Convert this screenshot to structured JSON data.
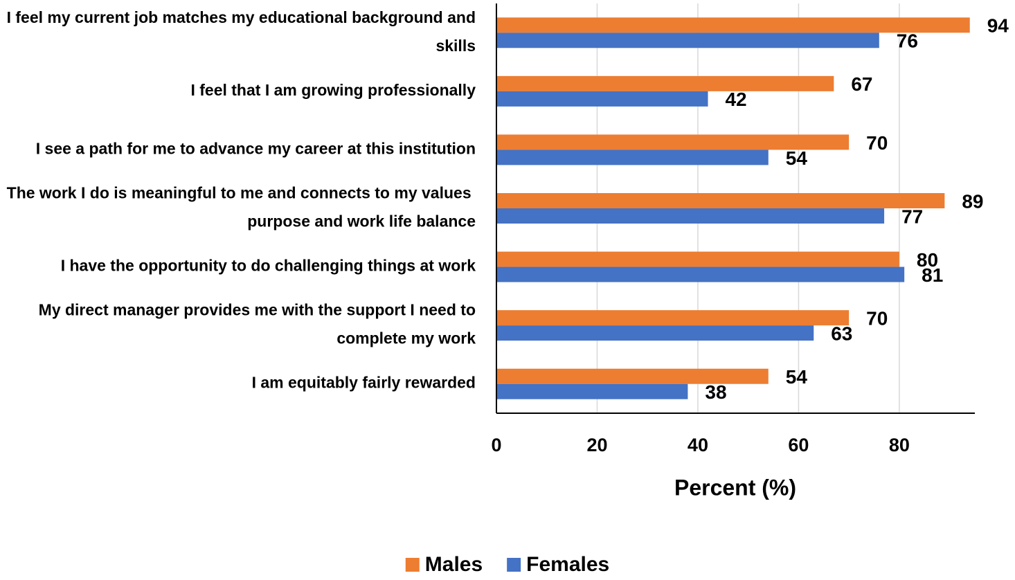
{
  "chart_data": {
    "type": "bar",
    "orientation": "horizontal",
    "categories": [
      "I feel my current job matches my educational background and skills",
      "I feel that I am growing professionally",
      "I see a path for me to advance my career at this institution",
      "The work I do is meaningful to me and connects to my values  purpose  and work life balance",
      "I have the opportunity to do challenging things at work",
      "My direct manager provides me with the support I need to complete my work",
      "I am equitably fairly rewarded"
    ],
    "series": [
      {
        "name": "Males",
        "color": "#ED7D31",
        "values": [
          94,
          67,
          70,
          89,
          80,
          70,
          54
        ]
      },
      {
        "name": "Females",
        "color": "#4472C4",
        "values": [
          76,
          42,
          54,
          77,
          81,
          63,
          38
        ]
      }
    ],
    "xlabel": "Percent (%)",
    "xlim": [
      0,
      95
    ],
    "xticks": [
      0,
      20,
      40,
      60,
      80
    ],
    "grid": true,
    "legend": "bottom"
  }
}
